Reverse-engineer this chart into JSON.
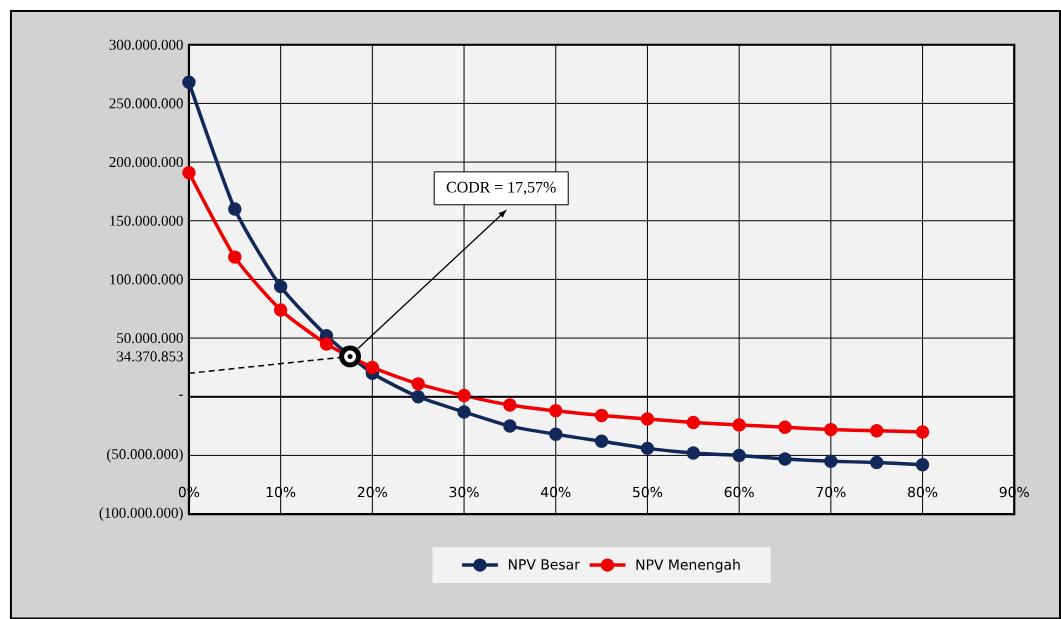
{
  "chart_data": {
    "type": "line",
    "x": [
      0,
      5,
      10,
      15,
      20,
      25,
      30,
      35,
      40,
      45,
      50,
      55,
      60,
      65,
      70,
      75,
      80
    ],
    "series": [
      {
        "name": "NPV Besar",
        "color": "#12275a",
        "values": [
          268000000,
          160000000,
          94000000,
          52000000,
          20000000,
          0,
          -13000000,
          -25000000,
          -32000000,
          -38000000,
          -44000000,
          -48000000,
          -50000000,
          -53000000,
          -55000000,
          -56000000,
          -58000000
        ]
      },
      {
        "name": "NPV Menengah",
        "color": "#f00000",
        "values": [
          191000000,
          119000000,
          74000000,
          45000000,
          25000000,
          11000000,
          1000000,
          -7000000,
          -12000000,
          -16000000,
          -19000000,
          -22000000,
          -24000000,
          -26000000,
          -28000000,
          -29000000,
          -30000000
        ]
      },
      {
        "type": "line",
        "line_style": "dashed",
        "marker": "none",
        "color": "#000000",
        "x": [
          0,
          17.57
        ],
        "values": [
          20000000,
          34370853
        ]
      }
    ],
    "xlim": [
      0,
      90
    ],
    "ylim": [
      -100000000,
      300000000
    ],
    "xticks": [
      {
        "value": 0,
        "label": "0%"
      },
      {
        "value": 10,
        "label": "10%"
      },
      {
        "value": 20,
        "label": "20%"
      },
      {
        "value": 30,
        "label": "30%"
      },
      {
        "value": 40,
        "label": "40%"
      },
      {
        "value": 50,
        "label": "50%"
      },
      {
        "value": 60,
        "label": "60%"
      },
      {
        "value": 70,
        "label": "70%"
      },
      {
        "value": 80,
        "label": "80%"
      },
      {
        "value": 90,
        "label": "90%"
      }
    ],
    "yticks": [
      {
        "value": -100000000,
        "label": "(100.000.000)"
      },
      {
        "value": -50000000,
        "label": "(50.000.000)"
      },
      {
        "value": 0,
        "label": "-"
      },
      {
        "value": 34370853,
        "label": "34.370.853"
      },
      {
        "value": 50000000,
        "label": "50.000.000"
      },
      {
        "value": 100000000,
        "label": "100.000.000"
      },
      {
        "value": 150000000,
        "label": "150.000.000"
      },
      {
        "value": 200000000,
        "label": "200.000.000"
      },
      {
        "value": 250000000,
        "label": "250.000.000"
      },
      {
        "value": 300000000,
        "label": "300.000.000"
      }
    ],
    "annotations": [
      "CODR = 17,57%"
    ],
    "grid": true,
    "legend": "bottom",
    "marker": "circle",
    "line_style": "solid"
  }
}
